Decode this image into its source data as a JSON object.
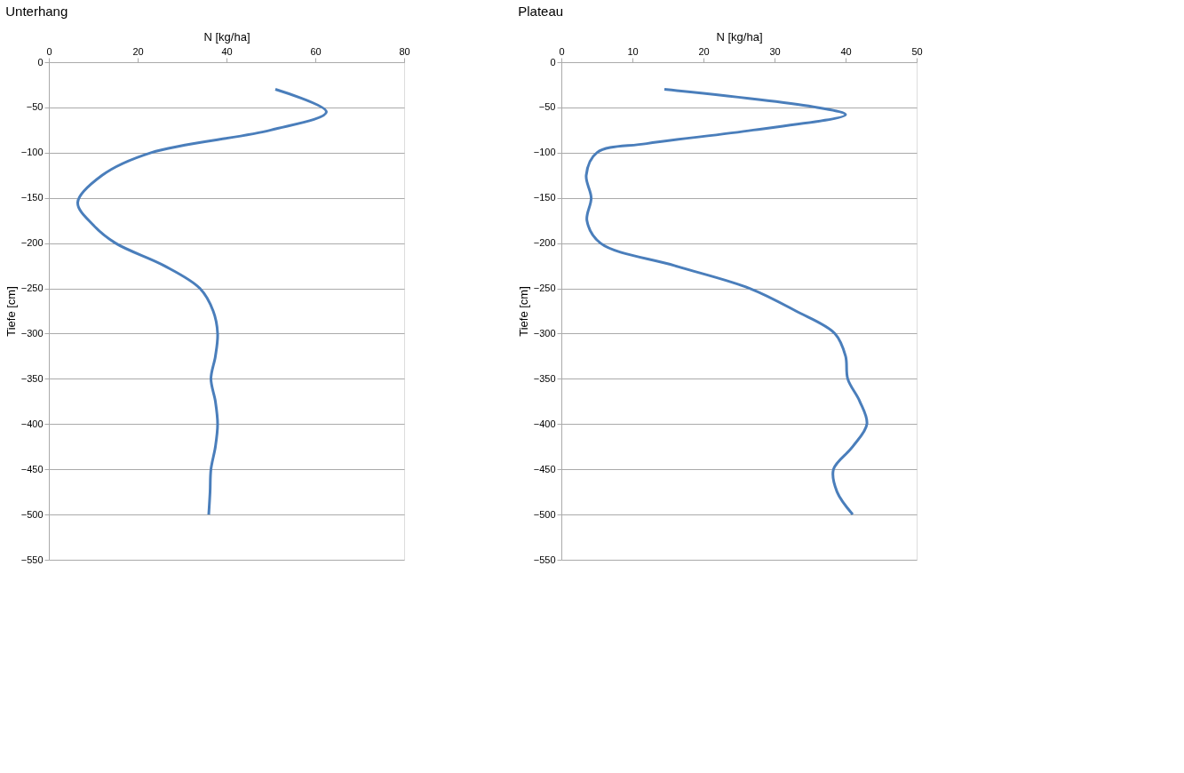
{
  "chart_data": [
    {
      "type": "line",
      "title": "Unterhang",
      "xlabel": "N [kg/ha]",
      "ylabel": "Tiefe [cm]",
      "xlim": [
        0,
        80
      ],
      "xticks": [
        0,
        20,
        40,
        60,
        80
      ],
      "ylim": [
        -550,
        0
      ],
      "yticks": [
        0,
        -50,
        -100,
        -150,
        -200,
        -250,
        -300,
        -350,
        -400,
        -450,
        -500,
        -550
      ],
      "grid": "y",
      "marker": "none",
      "line_style": "solid",
      "series": [
        {
          "color": "#4a7ebb",
          "x": [
            51,
            62.5,
            50,
            23,
            12,
            6.5,
            10,
            15,
            26,
            34,
            37,
            38,
            37.5,
            36.5,
            37.5,
            38,
            37.5,
            36.5,
            36.3,
            36
          ],
          "values": [
            -30,
            -55,
            -75,
            -100,
            -125,
            -155,
            -180,
            -200,
            -225,
            -250,
            -275,
            -300,
            -325,
            -350,
            -375,
            -400,
            -425,
            -450,
            -475,
            -500
          ]
        }
      ]
    },
    {
      "type": "line",
      "title": "Plateau",
      "xlabel": "N [kg/ha]",
      "ylabel": "Tiefe [cm]",
      "xlim": [
        0,
        50
      ],
      "xticks": [
        0,
        10,
        20,
        30,
        40,
        50
      ],
      "ylim": [
        -550,
        0
      ],
      "yticks": [
        0,
        -50,
        -100,
        -150,
        -200,
        -250,
        -300,
        -350,
        -400,
        -450,
        -500,
        -550
      ],
      "grid": "y",
      "marker": "none",
      "line_style": "solid",
      "series": [
        {
          "color": "#4a7ebb",
          "x": [
            14.5,
            36,
            40,
            27,
            12,
            5,
            3.5,
            4.2,
            3.6,
            5.5,
            16,
            26.5,
            33,
            38.5,
            40,
            40.3,
            42,
            43,
            41,
            38.3,
            38.8,
            41
          ],
          "values": [
            -30,
            -50,
            -58,
            -75,
            -90,
            -100,
            -125,
            -150,
            -175,
            -200,
            -225,
            -250,
            -275,
            -300,
            -325,
            -350,
            -375,
            -400,
            -425,
            -450,
            -475,
            -500
          ]
        }
      ]
    }
  ]
}
